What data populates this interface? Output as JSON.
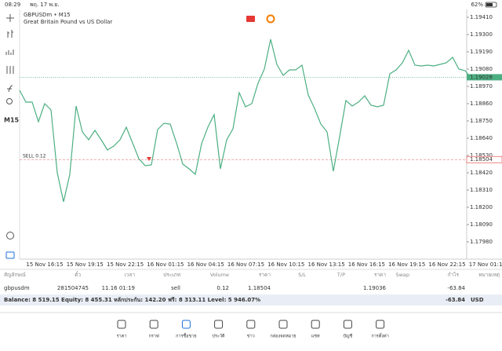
{
  "status_bar": {
    "time": "08:29",
    "date": "พฤ. 17 พ.ย.",
    "battery": "62%"
  },
  "toolbar": {
    "timeframe": "M15"
  },
  "chart": {
    "type": "line",
    "symbol": "GBPUSDm • M15",
    "description": "Great Britain Pound vs US Dollar",
    "color": "#4caf82",
    "values": [
      1.18945,
      1.1887,
      1.1887,
      1.18745,
      1.1886,
      1.1882,
      1.1842,
      1.18235,
      1.1841,
      1.18845,
      1.1868,
      1.1863,
      1.1869,
      1.1863,
      1.18565,
      1.1859,
      1.1863,
      1.1871,
      1.1861,
      1.1851,
      1.18465,
      1.1847,
      1.18695,
      1.18735,
      1.1873,
      1.1861,
      1.18475,
      1.18445,
      1.1841,
      1.18605,
      1.1871,
      1.1879,
      1.18445,
      1.1863,
      1.187,
      1.1893,
      1.1884,
      1.1886,
      1.1899,
      1.1908,
      1.1927,
      1.1911,
      1.1904,
      1.19075,
      1.19075,
      1.19105,
      1.18915,
      1.1883,
      1.1873,
      1.1868,
      1.1843,
      1.1865,
      1.1888,
      1.18845,
      1.1887,
      1.1891,
      1.1885,
      1.1884,
      1.1885,
      1.1905,
      1.19075,
      1.1912,
      1.192,
      1.19105,
      1.191,
      1.19105,
      1.191,
      1.1911,
      1.1912,
      1.19155,
      1.1908,
      1.1907,
      1.1902
    ],
    "ylim": [
      1.1787,
      1.1946
    ],
    "yticks": [
      {
        "value": 1.1941,
        "label": "1.19410"
      },
      {
        "value": 1.193,
        "label": "1.19300"
      },
      {
        "value": 1.1919,
        "label": "1.19190"
      },
      {
        "value": 1.1908,
        "label": "1.19080"
      },
      {
        "value": 1.1897,
        "label": "1.18970"
      },
      {
        "value": 1.1886,
        "label": "1.18860"
      },
      {
        "value": 1.1875,
        "label": "1.18750"
      },
      {
        "value": 1.1864,
        "label": "1.18640"
      },
      {
        "value": 1.1853,
        "label": "1.18530"
      },
      {
        "value": 1.1842,
        "label": "1.18420"
      },
      {
        "value": 1.1831,
        "label": "1.18310"
      },
      {
        "value": 1.182,
        "label": "1.18200"
      },
      {
        "value": 1.1809,
        "label": "1.18090"
      },
      {
        "value": 1.1798,
        "label": "1.17980"
      }
    ],
    "x_labels": [
      "15 Nov 16:15",
      "15 Nov 19:15",
      "15 Nov 22:15",
      "16 Nov 01:15",
      "16 Nov 04:15",
      "16 Nov 07:15",
      "16 Nov 10:15",
      "16 Nov 13:15",
      "16 Nov 16:15",
      "16 Nov 19:15",
      "16 Nov 22:15",
      "17 Nov 01:15"
    ],
    "bid": 1.19028,
    "order": {
      "label": "SELL 0.12",
      "price": 1.18504
    }
  },
  "table": {
    "headers": [
      "สัญลักษณ์",
      "ตั๋ว",
      "เวลา",
      "ประเภท",
      "Volume",
      "ราคา",
      "S/L",
      "T/P",
      "ราคา",
      "Swap",
      "กำไร",
      "หมายเหตุ"
    ],
    "row": {
      "symbol": "gbpusdm",
      "ticket": "281504745",
      "time": "11.16 01:19",
      "type": "sell",
      "volume": "0.12",
      "open_price": "1.18504",
      "price": "1.19036",
      "profit": "-63.84"
    }
  },
  "balance": {
    "text": "Balance: 8 519.15 Equity: 8 455.31 หลักประกัน: 142.20 ฟรี: 8 313.11 Level: 5 946.07%",
    "profit": "-63.84",
    "currency": "USD"
  },
  "nav": [
    "ราคา",
    "กราฟ",
    "การซื้อขาย",
    "ประวัติ",
    "ข่าว",
    "กล่องจดหมาย",
    "แชท",
    "บัญชี",
    "การตั้งค่า"
  ]
}
